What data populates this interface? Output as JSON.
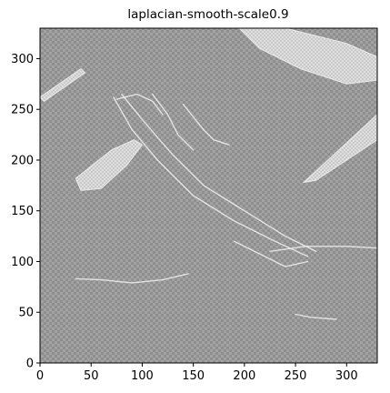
{
  "chart_data": {
    "type": "heatmap",
    "title": "laplacian-smooth-scale0.9",
    "xlabel": "",
    "ylabel": "",
    "xlim": [
      0,
      330
    ],
    "ylim": [
      0,
      330
    ],
    "x_ticks": [
      0,
      50,
      100,
      150,
      200,
      250,
      300
    ],
    "y_ticks": [
      0,
      50,
      100,
      150,
      200,
      250,
      300
    ],
    "colormap": "gray",
    "background_color": "#9e9e9e",
    "bright_regions": [
      {
        "label": "upper-left streak",
        "points": [
          [
            0,
            262
          ],
          [
            40,
            290
          ],
          [
            44,
            286
          ],
          [
            4,
            258
          ]
        ]
      },
      {
        "label": "top-center patch",
        "points": [
          [
            195,
            330
          ],
          [
            240,
            330
          ],
          [
            300,
            315
          ],
          [
            345,
            295
          ],
          [
            340,
            280
          ],
          [
            300,
            275
          ],
          [
            255,
            290
          ],
          [
            215,
            310
          ]
        ]
      },
      {
        "label": "right wedge",
        "points": [
          [
            258,
            178
          ],
          [
            330,
            245
          ],
          [
            330,
            220
          ],
          [
            300,
            200
          ],
          [
            270,
            180
          ]
        ]
      },
      {
        "label": "left fan patch",
        "points": [
          [
            35,
            182
          ],
          [
            70,
            210
          ],
          [
            92,
            220
          ],
          [
            100,
            215
          ],
          [
            85,
            195
          ],
          [
            60,
            172
          ],
          [
            40,
            170
          ]
        ]
      }
    ],
    "edge_lines": [
      [
        [
          72,
          262
        ],
        [
          90,
          230
        ],
        [
          115,
          200
        ],
        [
          150,
          165
        ],
        [
          190,
          140
        ],
        [
          230,
          120
        ],
        [
          262,
          105
        ]
      ],
      [
        [
          80,
          265
        ],
        [
          100,
          240
        ],
        [
          130,
          205
        ],
        [
          160,
          175
        ],
        [
          200,
          150
        ],
        [
          240,
          125
        ],
        [
          270,
          110
        ]
      ],
      [
        [
          75,
          260
        ],
        [
          95,
          265
        ],
        [
          110,
          258
        ],
        [
          120,
          245
        ]
      ],
      [
        [
          110,
          265
        ],
        [
          125,
          245
        ],
        [
          135,
          225
        ],
        [
          150,
          210
        ]
      ],
      [
        [
          140,
          255
        ],
        [
          160,
          230
        ],
        [
          170,
          220
        ],
        [
          185,
          215
        ]
      ],
      [
        [
          35,
          83
        ],
        [
          60,
          82
        ],
        [
          90,
          79
        ],
        [
          120,
          82
        ],
        [
          145,
          88
        ]
      ],
      [
        [
          190,
          120
        ],
        [
          220,
          105
        ],
        [
          240,
          95
        ],
        [
          262,
          100
        ]
      ],
      [
        [
          225,
          110
        ],
        [
          260,
          115
        ],
        [
          300,
          115
        ],
        [
          335,
          113
        ]
      ],
      [
        [
          250,
          48
        ],
        [
          265,
          45
        ],
        [
          290,
          43
        ]
      ],
      [
        [
          330,
          20
        ],
        [
          345,
          15
        ]
      ]
    ]
  }
}
